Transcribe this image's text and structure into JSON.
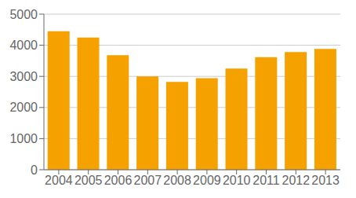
{
  "chart_data": {
    "type": "bar",
    "categories": [
      "2004",
      "2005",
      "2006",
      "2007",
      "2008",
      "2009",
      "2010",
      "2011",
      "2012",
      "2013"
    ],
    "values": [
      4450,
      4250,
      3680,
      3000,
      2820,
      2940,
      3250,
      3620,
      3780,
      3880
    ],
    "color": "#F5A100",
    "ylim": [
      0,
      5000
    ],
    "yticks": [
      0,
      1000,
      2000,
      3000,
      4000,
      5000
    ],
    "grid": true
  }
}
